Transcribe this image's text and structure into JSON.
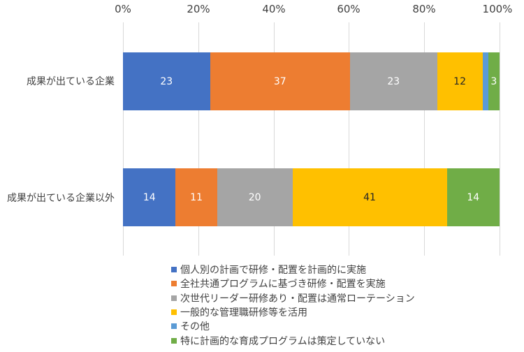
{
  "chart_data": {
    "type": "bar",
    "orientation": "horizontal",
    "stacked": "percent",
    "title": "",
    "xlabel": "",
    "ylabel": "",
    "xlim": [
      0,
      100
    ],
    "x_ticks": [
      "0%",
      "20%",
      "40%",
      "60%",
      "80%",
      "100%"
    ],
    "grid": true,
    "legend_position": "bottom",
    "categories": [
      "成果が出ている企業",
      "成果が出ている企業以外"
    ],
    "series": [
      {
        "name": "個人別の計画で研修・配置を計画的に実施",
        "color": "#4472C4",
        "values": [
          23,
          14
        ],
        "labels": [
          "23",
          "14"
        ],
        "label_color": "#ffffff"
      },
      {
        "name": "全社共通プログラムに基づき研修・配置を実施",
        "color": "#ED7D31",
        "values": [
          37,
          11
        ],
        "labels": [
          "37",
          "11"
        ],
        "label_color": "#ffffff"
      },
      {
        "name": "次世代リーダー研修あり・配置は通常ローテーション",
        "color": "#A5A5A5",
        "values": [
          23,
          20
        ],
        "labels": [
          "23",
          "20"
        ],
        "label_color": "#ffffff"
      },
      {
        "name": "一般的な管理職研修等を活用",
        "color": "#FFC000",
        "values": [
          12,
          41
        ],
        "labels": [
          "12",
          "41"
        ],
        "label_color": "#262626"
      },
      {
        "name": "その他",
        "color": "#5B9BD5",
        "values": [
          1.5,
          0
        ],
        "labels": [
          "",
          ""
        ],
        "label_color": "#ffffff"
      },
      {
        "name": "特に計画的な育成プログラムは策定していない",
        "color": "#70AD47",
        "values": [
          3,
          14
        ],
        "labels": [
          "3",
          "14"
        ],
        "label_color": "#ffffff"
      }
    ]
  }
}
